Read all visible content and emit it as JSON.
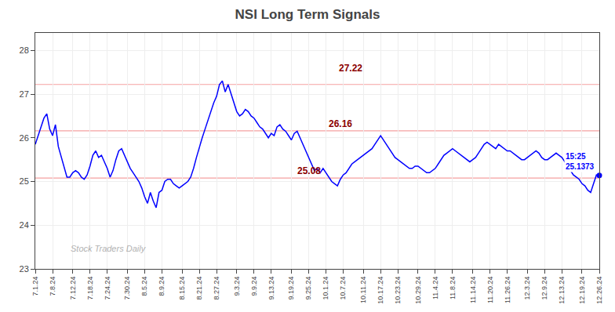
{
  "chart_data": {
    "type": "line",
    "title": "NSI Long Term Signals",
    "categories": [
      "7.1.24",
      null,
      null,
      null,
      null,
      null,
      "7.8.24",
      null,
      null,
      null,
      null,
      null,
      null,
      "7.12.24",
      null,
      null,
      null,
      null,
      null,
      "7.18.24",
      null,
      null,
      null,
      null,
      null,
      "7.24.24",
      null,
      null,
      null,
      null,
      null,
      null,
      "7.30.24",
      null,
      null,
      null,
      null,
      null,
      "8.5.24",
      null,
      null,
      null,
      null,
      null,
      "8.9.24",
      null,
      null,
      null,
      null,
      null,
      null,
      "8.15.24",
      null,
      null,
      null,
      null,
      null,
      "8.21.24",
      null,
      null,
      null,
      null,
      null,
      "8.27.24",
      null,
      null,
      null,
      null,
      null,
      null,
      "9.3.24",
      null,
      null,
      null,
      null,
      null,
      "9.9.24",
      null,
      null,
      null,
      null,
      null,
      "9.13.24",
      null,
      null,
      null,
      null,
      null,
      null,
      "9.19.24",
      null,
      null,
      null,
      null,
      null,
      "9.25.24",
      null,
      null,
      null,
      null,
      null,
      "10.1.24",
      null,
      null,
      null,
      null,
      null,
      "10.7.24",
      null,
      null,
      null,
      null,
      null,
      null,
      "10.11.24",
      null,
      null,
      null,
      null,
      null,
      "10.17.24",
      null,
      null,
      null,
      null,
      null,
      "10.23.24",
      null,
      null,
      null,
      null,
      null,
      null,
      "10.29.24",
      null,
      null,
      null,
      null,
      null,
      "11.4.24",
      null,
      null,
      null,
      null,
      null,
      "11.8.24",
      null,
      null,
      null,
      null,
      null,
      null,
      "11.14.24",
      null,
      null,
      null,
      null,
      null,
      "11.20.24",
      null,
      null,
      null,
      null,
      null,
      "11.26.24",
      null,
      null,
      null,
      null,
      null,
      null,
      "12.3.24",
      null,
      null,
      null,
      null,
      null,
      "12.9.24",
      null,
      null,
      null,
      null,
      null,
      "12.13.24",
      null,
      null,
      null,
      null,
      null,
      null,
      "12.19.24",
      null,
      null,
      null,
      null,
      null,
      "12.26.24"
    ],
    "values": [
      25.85,
      26.05,
      26.25,
      26.45,
      26.55,
      26.2,
      26.05,
      26.3,
      25.8,
      25.55,
      25.3,
      25.1,
      25.1,
      25.2,
      25.25,
      25.2,
      25.1,
      25.05,
      25.15,
      25.35,
      25.6,
      25.7,
      25.55,
      25.6,
      25.45,
      25.3,
      25.1,
      25.25,
      25.5,
      25.7,
      25.75,
      25.6,
      25.45,
      25.3,
      25.2,
      25.1,
      25.0,
      24.85,
      24.65,
      24.5,
      24.75,
      24.55,
      24.4,
      24.75,
      24.8,
      25.0,
      25.05,
      25.05,
      24.95,
      24.9,
      24.85,
      24.9,
      24.95,
      25.0,
      25.1,
      25.3,
      25.55,
      25.8,
      26.0,
      26.2,
      26.4,
      26.6,
      26.8,
      26.95,
      27.22,
      27.3,
      27.05,
      27.22,
      27.0,
      26.8,
      26.6,
      26.5,
      26.55,
      26.65,
      26.6,
      26.5,
      26.45,
      26.35,
      26.25,
      26.2,
      26.1,
      26.0,
      26.1,
      26.05,
      26.25,
      26.3,
      26.2,
      26.15,
      26.05,
      25.95,
      26.1,
      26.15,
      26.0,
      25.85,
      25.7,
      25.55,
      25.4,
      25.25,
      25.3,
      25.2,
      25.3,
      25.2,
      25.1,
      25.0,
      24.95,
      24.9,
      25.05,
      25.15,
      25.2,
      25.3,
      25.4,
      25.45,
      25.5,
      25.55,
      25.6,
      25.65,
      25.7,
      25.75,
      25.85,
      25.95,
      26.05,
      25.95,
      25.85,
      25.75,
      25.65,
      25.55,
      25.5,
      25.45,
      25.4,
      25.35,
      25.3,
      25.3,
      25.35,
      25.35,
      25.3,
      25.25,
      25.2,
      25.2,
      25.25,
      25.3,
      25.4,
      25.5,
      25.6,
      25.65,
      25.7,
      25.75,
      25.7,
      25.65,
      25.6,
      25.55,
      25.5,
      25.45,
      25.5,
      25.55,
      25.65,
      25.75,
      25.85,
      25.9,
      25.85,
      25.8,
      25.75,
      25.85,
      25.8,
      25.75,
      25.7,
      25.7,
      25.65,
      25.6,
      25.55,
      25.5,
      25.5,
      25.55,
      25.6,
      25.65,
      25.7,
      25.65,
      25.55,
      25.5,
      25.5,
      25.55,
      25.6,
      25.65,
      25.6,
      25.55,
      25.45,
      25.35,
      25.25,
      25.15,
      25.1,
      25.05,
      24.95,
      24.9,
      24.8,
      24.75,
      24.95,
      25.15,
      25.1373
    ],
    "color": "blue",
    "ylim": [
      23,
      28.4
    ],
    "yticks": [
      23,
      24,
      25,
      26,
      27,
      28
    ],
    "grid": true,
    "hlines": [
      {
        "value": 25.08,
        "label": "25.08"
      },
      {
        "value": 26.16,
        "label": "26.16"
      },
      {
        "value": 27.22,
        "label": "27.22"
      }
    ],
    "hline_color": "#f5a0a0",
    "hline_label_color": "darkred",
    "last_point": {
      "value": 25.1373,
      "label": "15:25\n25.1373",
      "color": "blue"
    },
    "watermark": "Stock Traders Daily"
  }
}
